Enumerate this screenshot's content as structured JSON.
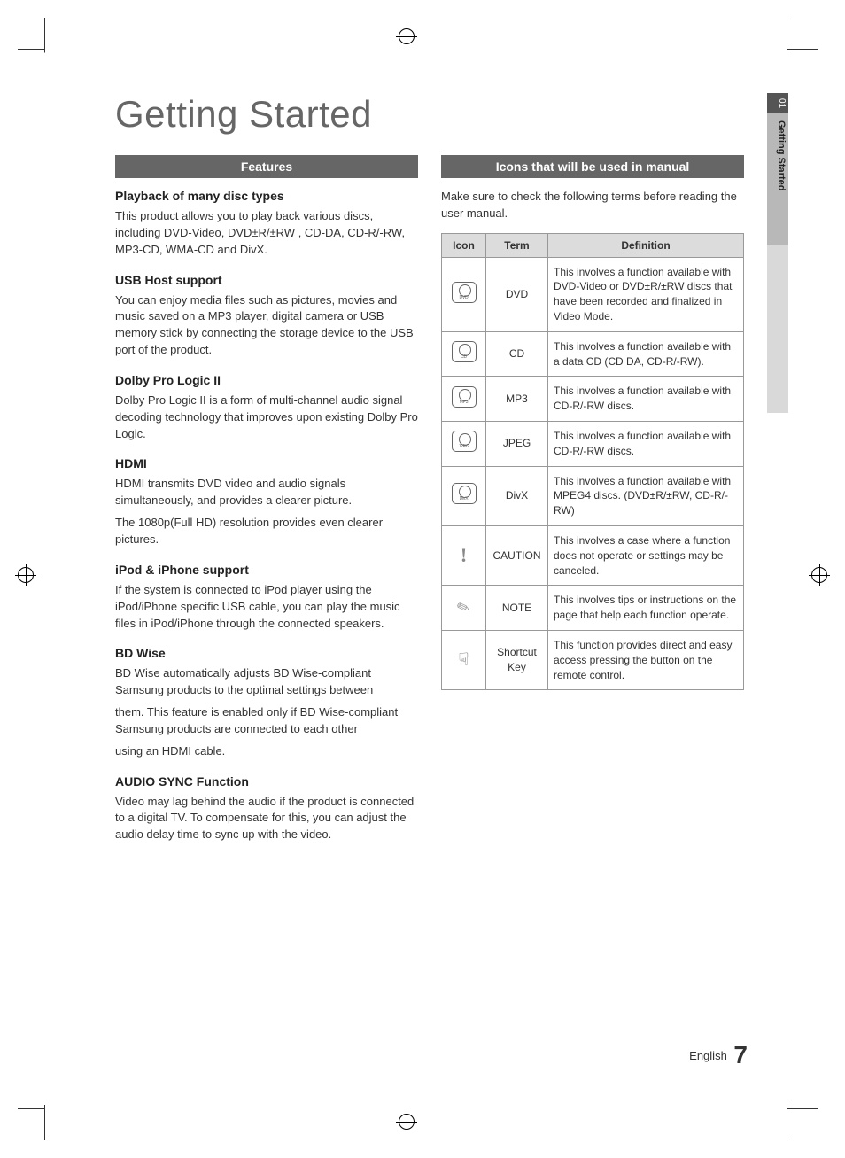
{
  "page_title": "Getting Started",
  "side_tab": {
    "number": "01",
    "title": "Getting Started"
  },
  "left": {
    "header": "Features",
    "items": [
      {
        "title": "Playback of many disc types",
        "body": [
          "This product allows you to play back various discs, including DVD-Video, DVD±R/±RW , CD-DA, CD-R/-RW, MP3-CD, WMA-CD and DivX."
        ]
      },
      {
        "title": "USB Host support",
        "body": [
          "You can enjoy media files such as pictures, movies and music saved on a MP3 player, digital camera or USB memory stick by connecting the storage device to the USB port of the product."
        ]
      },
      {
        "title": "Dolby Pro Logic II",
        "body": [
          "Dolby Pro Logic II is a form of multi-channel audio signal decoding technology that improves upon existing Dolby Pro Logic."
        ]
      },
      {
        "title": "HDMI",
        "body": [
          "HDMI transmits DVD video and audio signals simultaneously, and provides a clearer picture.",
          "The 1080p(Full HD) resolution provides even clearer pictures."
        ]
      },
      {
        "title": "iPod & iPhone support",
        "body": [
          "If the system is connected to iPod player using the iPod/iPhone specific USB cable, you can play the music files in iPod/iPhone through the connected speakers."
        ]
      },
      {
        "title": "BD Wise",
        "body": [
          "BD Wise automatically adjusts BD Wise-compliant Samsung products to the optimal settings between",
          "them. This feature is enabled only if BD Wise-compliant Samsung products are connected to each other",
          "using an HDMI cable."
        ]
      },
      {
        "title": "AUDIO SYNC Function",
        "body": [
          "Video may lag behind the audio if the product is connected to a digital TV.\nTo compensate for this, you can adjust the audio delay time to sync up with the video."
        ]
      }
    ]
  },
  "right": {
    "header": "Icons that will be used in manual",
    "intro": "Make sure to check the following terms before reading the user manual.",
    "table": {
      "headers": {
        "icon": "Icon",
        "term": "Term",
        "definition": "Definition"
      },
      "rows": [
        {
          "icon_type": "disc",
          "icon_label": "DVD",
          "term": "DVD",
          "definition": "This involves a function available with DVD-Video or DVD±R/±RW discs that have been recorded and finalized in Video Mode."
        },
        {
          "icon_type": "disc",
          "icon_label": "CD",
          "term": "CD",
          "definition": "This involves a function available with a data CD (CD DA, CD-R/-RW)."
        },
        {
          "icon_type": "disc",
          "icon_label": "MP3",
          "term": "MP3",
          "definition": "This involves a function available with CD-R/-RW discs."
        },
        {
          "icon_type": "disc",
          "icon_label": "JPEG",
          "term": "JPEG",
          "definition": "This involves a function available with CD-R/-RW discs."
        },
        {
          "icon_type": "disc",
          "icon_label": "DivX",
          "term": "DivX",
          "definition": "This involves a function available with MPEG4 discs. (DVD±R/±RW, CD-R/-RW)"
        },
        {
          "icon_type": "caution",
          "term": "CAUTION",
          "definition": "This involves a case where a function does not operate or settings may be canceled."
        },
        {
          "icon_type": "note",
          "term": "NOTE",
          "definition": "This involves tips or instructions on the page that help each function operate."
        },
        {
          "icon_type": "shortcut",
          "term": "Shortcut Key",
          "definition": "This function provides direct and easy access pressing the button on the remote control."
        }
      ]
    }
  },
  "footer": {
    "lang": "English",
    "page_number": "7"
  },
  "colors": {
    "header_bg": "#666666",
    "header_fg": "#ffffff",
    "table_header_bg": "#dcdcdc",
    "border": "#999999",
    "text": "#333333",
    "title_color": "#666666"
  }
}
